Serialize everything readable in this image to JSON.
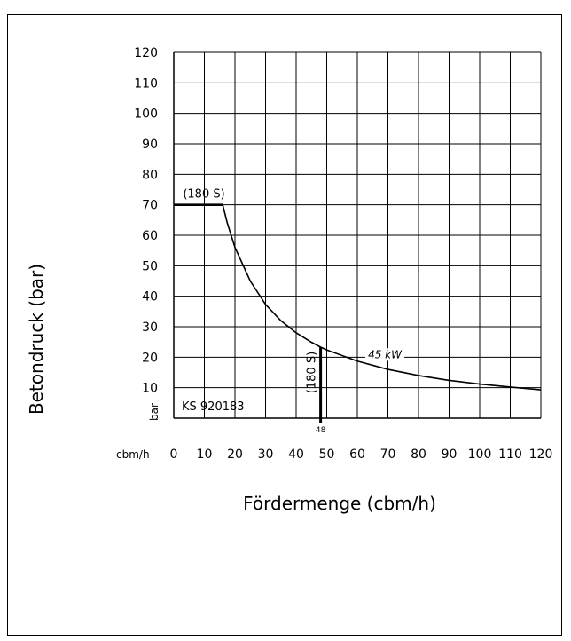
{
  "chart_data": {
    "type": "line",
    "title": "",
    "xlabel": "Fördermenge (cbm/h)",
    "ylabel": "Betondruck (bar)",
    "x_unit_label": "cbm/h",
    "y_unit_label": "bar",
    "xlim": [
      0,
      120
    ],
    "ylim": [
      0,
      120
    ],
    "x_ticks": [
      0,
      10,
      20,
      30,
      40,
      50,
      60,
      70,
      80,
      90,
      100,
      110,
      120
    ],
    "y_ticks": [
      10,
      20,
      30,
      40,
      50,
      60,
      70,
      80,
      90,
      100,
      110,
      120
    ],
    "grid": true,
    "id_label": "KS 920183",
    "series": [
      {
        "name": "",
        "points": [
          [
            0,
            70
          ],
          [
            16,
            70
          ],
          [
            17.5,
            64
          ],
          [
            20,
            56
          ],
          [
            25,
            45
          ],
          [
            30,
            37.3
          ],
          [
            35,
            32
          ],
          [
            40,
            28
          ],
          [
            45,
            24.9
          ],
          [
            48,
            23.3
          ],
          [
            50,
            22.4
          ],
          [
            60,
            18.7
          ],
          [
            70,
            16
          ],
          [
            80,
            14
          ],
          [
            90,
            12.4
          ],
          [
            100,
            11.2
          ],
          [
            110,
            10.2
          ],
          [
            120,
            9.3
          ]
        ]
      }
    ],
    "annotations": [
      {
        "text": "(180 S)",
        "x": 3,
        "y": 70,
        "kind": "pressure-limit"
      },
      {
        "text": "(180 S)",
        "x": 48,
        "y": 15,
        "kind": "flow-limit",
        "rotated": true
      },
      {
        "text": "45 kW",
        "x": 69,
        "y": 20,
        "kind": "power-label"
      },
      {
        "text": "48",
        "x": 48,
        "y": 0,
        "kind": "limit-value"
      }
    ],
    "flow_limit": {
      "x": 48,
      "y_from": 0,
      "y_to": 23.3
    }
  }
}
